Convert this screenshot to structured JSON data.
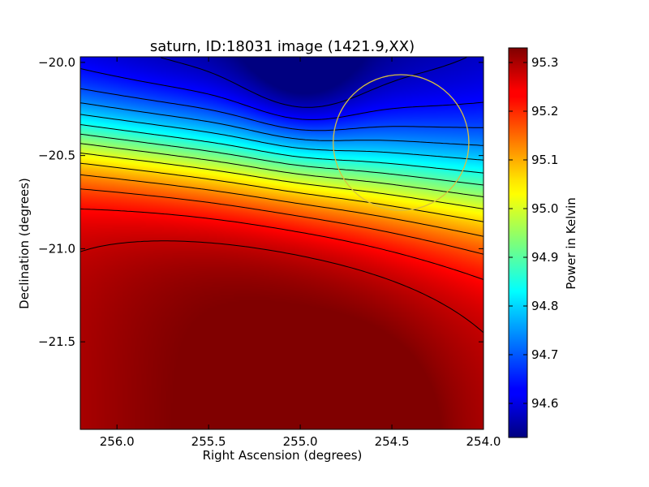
{
  "chart_data": {
    "type": "heatmap",
    "title": "saturn, ID:18031 image (1421.9,XX)",
    "xlabel": "Right Ascension (degrees)",
    "ylabel": "Declination (degrees)",
    "colorbar_label": "Power in Kelvin",
    "colormap": "jet",
    "x_inverted": true,
    "xlim": [
      256.2,
      254.0
    ],
    "ylim": [
      -21.97,
      -19.97
    ],
    "x_ticks": [
      256.0,
      255.5,
      255.0,
      254.5,
      254.0
    ],
    "x_tick_labels": [
      "256.0",
      "255.5",
      "255.0",
      "254.5",
      "254.0"
    ],
    "y_ticks": [
      -20.0,
      -20.5,
      -21.0,
      -21.5
    ],
    "y_tick_labels": [
      "−20.0",
      "−20.5",
      "−21.0",
      "−21.5"
    ],
    "colorbar_range": [
      94.53,
      95.33
    ],
    "colorbar_ticks": [
      94.6,
      94.7,
      94.8,
      94.9,
      95.0,
      95.1,
      95.2,
      95.3
    ],
    "colorbar_tick_labels": [
      "94.6",
      "94.7",
      "94.8",
      "94.9",
      "95.0",
      "95.1",
      "95.2",
      "95.3"
    ],
    "min_value": 94.53,
    "max_value": 95.33,
    "min_location": [
      255.0,
      -20.0
    ],
    "max_location": [
      254.78,
      -21.95
    ],
    "contour_count": 14,
    "beam_circle": {
      "center": [
        254.45,
        -20.43
      ],
      "radius_deg": 0.37,
      "color": "#d8c040"
    }
  }
}
